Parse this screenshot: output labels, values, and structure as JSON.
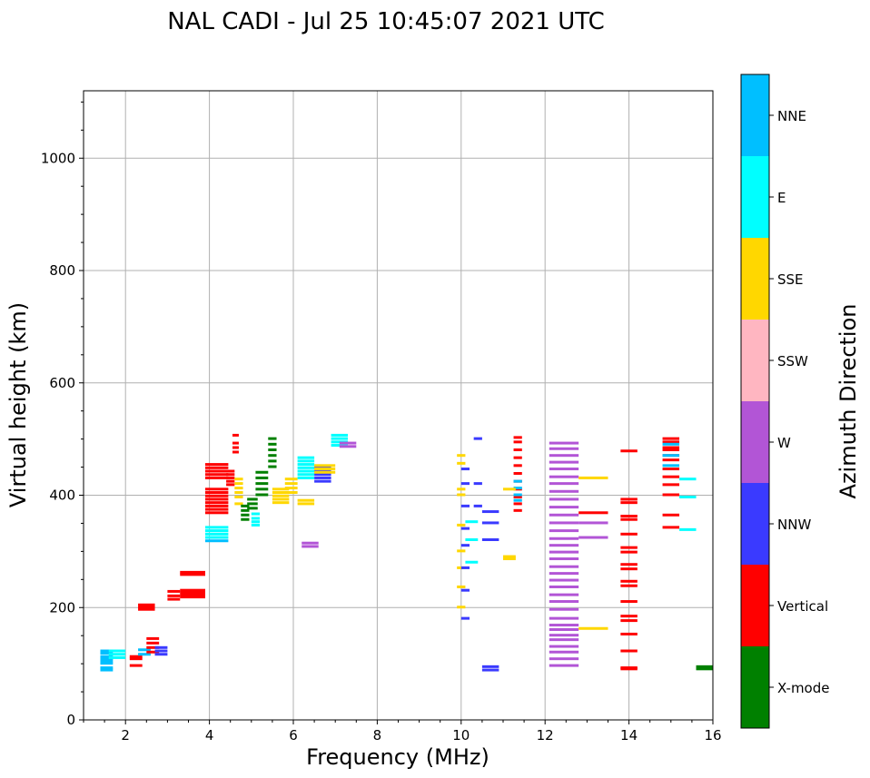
{
  "chart_data": {
    "type": "scatter",
    "title": "NAL CADI - Jul 25 10:45:07 2021 UTC",
    "xlabel": "Frequency (MHz)",
    "ylabel": "Virtual height (km)",
    "xlim": [
      1,
      16
    ],
    "ylim": [
      0,
      1120
    ],
    "xticks": [
      2,
      4,
      6,
      8,
      10,
      12,
      14,
      16
    ],
    "yticks": [
      0,
      200,
      400,
      600,
      800,
      1000
    ],
    "grid": true,
    "colorbar": {
      "label": "Azimuth Direction",
      "categories": [
        {
          "name": "X-mode",
          "color": "#008000"
        },
        {
          "name": "Vertical",
          "color": "#ff0000"
        },
        {
          "name": "NNW",
          "color": "#3a3aff"
        },
        {
          "name": "W",
          "color": "#b255d6"
        },
        {
          "name": "SSW",
          "color": "#ffb6c1"
        },
        {
          "name": "SSE",
          "color": "#ffd700"
        },
        {
          "name": "E",
          "color": "#00ffff"
        },
        {
          "name": "NNE",
          "color": "#00bfff"
        }
      ]
    },
    "echoes": [
      {
        "f0": 1.4,
        "f1": 1.7,
        "h": [
          88,
          92,
          100,
          104,
          108,
          112,
          118,
          122
        ],
        "cat": "NNE"
      },
      {
        "f0": 1.6,
        "f1": 2.0,
        "h": [
          110,
          116,
          122
        ],
        "cat": "E"
      },
      {
        "f0": 2.1,
        "f1": 2.4,
        "h": [
          96,
          108,
          112
        ],
        "cat": "Vertical"
      },
      {
        "f0": 2.3,
        "f1": 2.6,
        "h": [
          116,
          124
        ],
        "cat": "NNE"
      },
      {
        "f0": 2.5,
        "f1": 2.8,
        "h": [
          120,
          128,
          136,
          144
        ],
        "cat": "Vertical"
      },
      {
        "f0": 2.7,
        "f1": 3.0,
        "h": [
          116,
          122,
          128
        ],
        "cat": "NNW"
      },
      {
        "f0": 2.3,
        "f1": 2.7,
        "h": [
          196,
          200,
          204
        ],
        "cat": "Vertical"
      },
      {
        "f0": 3.0,
        "f1": 3.3,
        "h": [
          214,
          220,
          228
        ],
        "cat": "Vertical"
      },
      {
        "f0": 3.3,
        "f1": 3.9,
        "h": [
          218,
          222,
          226,
          230
        ],
        "cat": "Vertical"
      },
      {
        "f0": 3.3,
        "f1": 3.9,
        "h": [
          258,
          262
        ],
        "cat": "Vertical"
      },
      {
        "f0": 3.9,
        "f1": 4.45,
        "h": [
          368,
          374,
          380,
          386,
          392,
          398,
          404,
          410
        ],
        "cat": "Vertical"
      },
      {
        "f0": 3.9,
        "f1": 4.45,
        "h": [
          430,
          436,
          442,
          448,
          454
        ],
        "cat": "Vertical"
      },
      {
        "f0": 3.9,
        "f1": 4.45,
        "h": [
          324,
          330,
          336,
          342
        ],
        "cat": "E"
      },
      {
        "f0": 3.9,
        "f1": 4.45,
        "h": [
          318
        ],
        "cat": "NNE"
      },
      {
        "f0": 4.4,
        "f1": 4.6,
        "h": [
          418,
          424,
          430,
          436,
          442
        ],
        "cat": "Vertical"
      },
      {
        "f0": 4.55,
        "f1": 4.7,
        "h": [
          476,
          484,
          492,
          506
        ],
        "cat": "Vertical"
      },
      {
        "f0": 4.6,
        "f1": 4.8,
        "h": [
          384,
          396,
          404,
          412,
          420,
          428
        ],
        "cat": "SSE"
      },
      {
        "f0": 4.75,
        "f1": 4.95,
        "h": [
          356,
          364,
          372,
          380
        ],
        "cat": "X-mode"
      },
      {
        "f0": 4.9,
        "f1": 5.15,
        "h": [
          376,
          384,
          392
        ],
        "cat": "X-mode"
      },
      {
        "f0": 5.0,
        "f1": 5.2,
        "h": [
          346,
          352,
          358,
          366
        ],
        "cat": "E"
      },
      {
        "f0": 5.1,
        "f1": 5.4,
        "h": [
          400,
          410,
          420,
          430,
          440
        ],
        "cat": "X-mode"
      },
      {
        "f0": 5.4,
        "f1": 5.6,
        "h": [
          450,
          460,
          470,
          480,
          490,
          500
        ],
        "cat": "X-mode"
      },
      {
        "f0": 5.5,
        "f1": 5.9,
        "h": [
          386,
          392,
          398,
          404,
          410
        ],
        "cat": "SSE"
      },
      {
        "f0": 5.8,
        "f1": 6.1,
        "h": [
          404,
          412,
          420,
          428
        ],
        "cat": "SSE"
      },
      {
        "f0": 6.1,
        "f1": 6.5,
        "h": [
          384,
          390
        ],
        "cat": "SSE"
      },
      {
        "f0": 6.1,
        "f1": 6.5,
        "h": [
          430,
          436,
          442,
          448,
          454,
          460,
          466
        ],
        "cat": "E"
      },
      {
        "f0": 6.5,
        "f1": 6.9,
        "h": [
          424,
          430,
          436,
          442,
          448
        ],
        "cat": "NNW"
      },
      {
        "f0": 6.5,
        "f1": 7.0,
        "h": [
          440,
          446,
          452
        ],
        "cat": "SSE"
      },
      {
        "f0": 6.9,
        "f1": 7.3,
        "h": [
          488,
          494,
          500,
          506
        ],
        "cat": "E"
      },
      {
        "f0": 7.1,
        "f1": 7.5,
        "h": [
          486,
          492
        ],
        "cat": "W"
      },
      {
        "f0": 6.2,
        "f1": 6.6,
        "h": [
          308,
          314
        ],
        "cat": "W"
      },
      {
        "f0": 9.9,
        "f1": 10.1,
        "h": [
          200,
          236,
          270,
          300,
          346,
          400,
          410,
          456,
          470
        ],
        "cat": "SSE"
      },
      {
        "f0": 10.0,
        "f1": 10.2,
        "h": [
          180,
          230,
          270,
          310,
          340,
          380,
          420,
          446
        ],
        "cat": "NNW"
      },
      {
        "f0": 10.1,
        "f1": 10.4,
        "h": [
          320,
          280,
          352
        ],
        "cat": "E"
      },
      {
        "f0": 10.3,
        "f1": 10.5,
        "h": [
          380,
          420,
          500
        ],
        "cat": "NNW"
      },
      {
        "f0": 10.5,
        "f1": 10.9,
        "h": [
          88,
          94,
          320,
          350,
          370
        ],
        "cat": "NNW"
      },
      {
        "f0": 11.25,
        "f1": 11.45,
        "h": [
          372,
          384,
          396,
          410,
          424,
          438,
          452,
          466,
          480,
          494,
          502
        ],
        "cat": "Vertical"
      },
      {
        "f0": 11.25,
        "f1": 11.45,
        "h": [
          390,
          400,
          412,
          424
        ],
        "cat": "NNE"
      },
      {
        "f0": 11.0,
        "f1": 11.3,
        "h": [
          286,
          290,
          410
        ],
        "cat": "SSE"
      },
      {
        "f0": 12.1,
        "f1": 12.8,
        "h": [
          96,
          108,
          120,
          130,
          142,
          150,
          160,
          168,
          180,
          196,
          210,
          222,
          236,
          248,
          260,
          272,
          286,
          298,
          310,
          322,
          336,
          350,
          364,
          378,
          392,
          406,
          420,
          432,
          446,
          458,
          470,
          482,
          492
        ],
        "cat": "W"
      },
      {
        "f0": 12.8,
        "f1": 13.5,
        "h": [
          430,
          162
        ],
        "cat": "SSE"
      },
      {
        "f0": 12.8,
        "f1": 13.5,
        "h": [
          368
        ],
        "cat": "Vertical"
      },
      {
        "f0": 12.8,
        "f1": 13.5,
        "h": [
          350,
          324
        ],
        "cat": "W"
      },
      {
        "f0": 13.8,
        "f1": 14.2,
        "h": [
          90,
          92,
          122,
          152,
          176,
          184,
          210,
          238,
          246,
          268,
          276,
          298,
          306,
          330,
          356,
          362,
          386,
          392,
          478
        ],
        "cat": "Vertical"
      },
      {
        "f0": 14.8,
        "f1": 15.2,
        "h": [
          342,
          364,
          400,
          418,
          432,
          446,
          462,
          470,
          480,
          484,
          494,
          500
        ],
        "cat": "Vertical"
      },
      {
        "f0": 14.8,
        "f1": 15.2,
        "h": [
          452,
          470,
          490
        ],
        "cat": "NNE"
      },
      {
        "f0": 15.2,
        "f1": 15.6,
        "h": [
          338,
          396,
          428
        ],
        "cat": "E"
      },
      {
        "f0": 15.6,
        "f1": 16.0,
        "h": [
          90,
          94
        ],
        "cat": "X-mode"
      }
    ]
  }
}
